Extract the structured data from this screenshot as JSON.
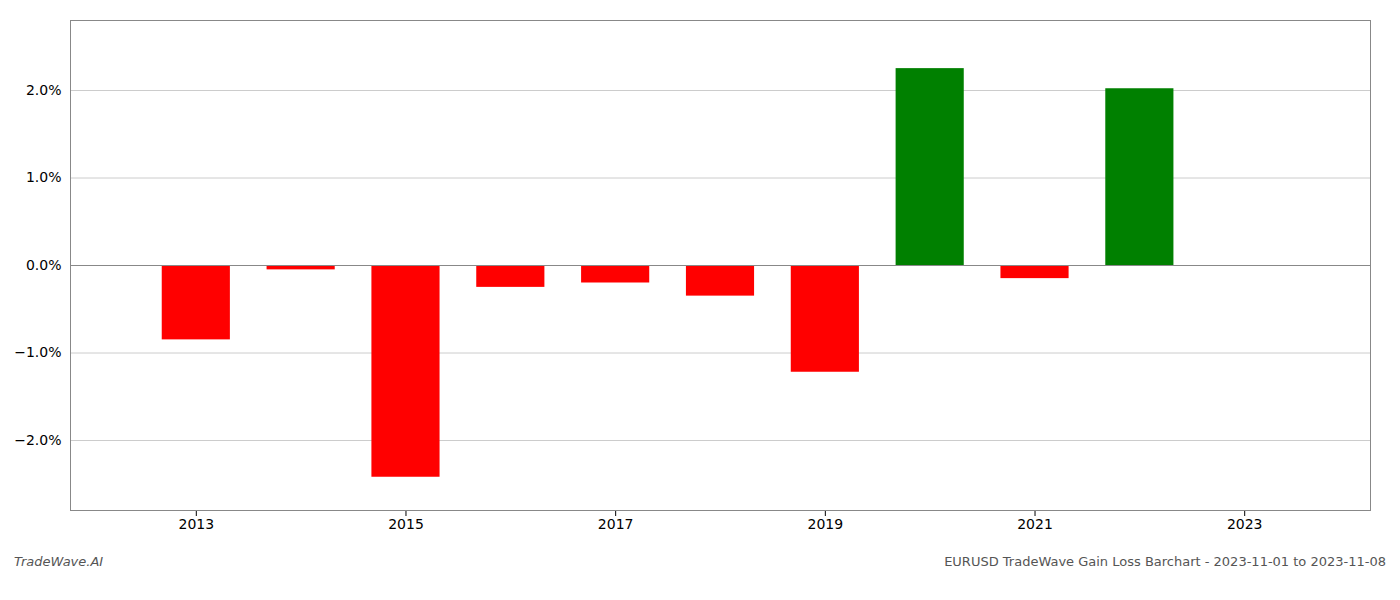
{
  "chart_data": {
    "type": "bar",
    "x": [
      2013,
      2014,
      2015,
      2016,
      2017,
      2018,
      2019,
      2020,
      2021,
      2022
    ],
    "values": [
      -0.85,
      -0.05,
      -2.42,
      -0.25,
      -0.2,
      -0.35,
      -1.22,
      2.25,
      -0.15,
      2.02
    ],
    "colors": [
      "#ff0000",
      "#ff0000",
      "#ff0000",
      "#ff0000",
      "#ff0000",
      "#ff0000",
      "#ff0000",
      "#008000",
      "#ff0000",
      "#008000"
    ],
    "xlim": [
      2011.8,
      2024.2
    ],
    "xticks": [
      2013,
      2015,
      2017,
      2019,
      2021,
      2023
    ],
    "ylim": [
      -2.8,
      2.8
    ],
    "yticks": [
      {
        "value": -2.0,
        "label": "−2.0%"
      },
      {
        "value": -1.0,
        "label": "−1.0%"
      },
      {
        "value": 0.0,
        "label": "0.0%"
      },
      {
        "value": 1.0,
        "label": "1.0%"
      },
      {
        "value": 2.0,
        "label": "2.0%"
      }
    ],
    "grid": true,
    "annotations": [
      "TradeWave.AI",
      "EURUSD TradeWave Gain Loss Barchart - 2023-11-01 to 2023-11-08"
    ]
  }
}
